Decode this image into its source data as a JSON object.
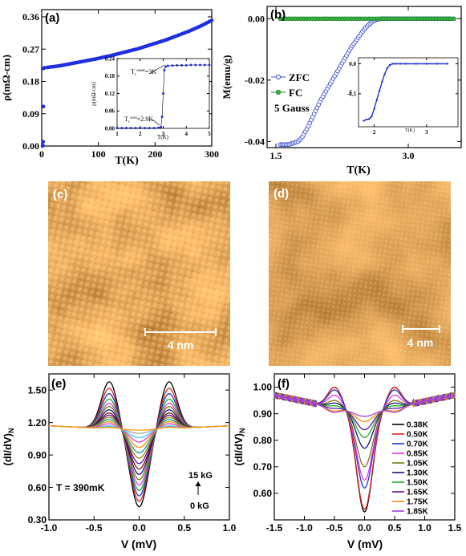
{
  "chart_data": [
    {
      "id": "a",
      "type": "scatter",
      "panel_label": "(a)",
      "xlabel": "T(K)",
      "ylabel": "ρ(mΩ-cm)",
      "xlim": [
        0,
        300
      ],
      "ylim": [
        0,
        0.38
      ],
      "xticks": [
        "0",
        "100",
        "200",
        "300"
      ],
      "yticks": [
        "0.00",
        "0.09",
        "0.18",
        "0.27",
        "0.36"
      ],
      "marker_color": "#1f2fe0",
      "series": [
        {
          "x": [
            1.5,
            2,
            2.5,
            3,
            3,
            5,
            10,
            20,
            30,
            40,
            50,
            60,
            70,
            80,
            90,
            100,
            110,
            120,
            130,
            140,
            150,
            160,
            170,
            180,
            190,
            200,
            210,
            220,
            230,
            240,
            250,
            260,
            270,
            280,
            290,
            300
          ],
          "y": [
            0.0,
            0.002,
            0.012,
            0.11,
            0.216,
            0.218,
            0.219,
            0.221,
            0.223,
            0.226,
            0.229,
            0.232,
            0.235,
            0.238,
            0.241,
            0.244,
            0.248,
            0.251,
            0.255,
            0.259,
            0.263,
            0.267,
            0.271,
            0.276,
            0.281,
            0.286,
            0.291,
            0.296,
            0.302,
            0.308,
            0.314,
            0.32,
            0.327,
            0.334,
            0.342,
            0.35
          ]
        }
      ],
      "inset": {
        "xlabel": "T(K)",
        "ylabel": "ρ(mΩ-cm)",
        "xlim": [
          1,
          5
        ],
        "ylim": [
          0,
          0.24
        ],
        "xticks": [
          "1",
          "2",
          "3",
          "4",
          "5"
        ],
        "yticks": [
          "0.00",
          "0.06",
          "0.12",
          "0.18",
          "0.24"
        ],
        "x": [
          1.0,
          1.2,
          1.4,
          1.6,
          1.8,
          2.0,
          2.2,
          2.4,
          2.6,
          2.8,
          2.9,
          2.95,
          3.0,
          3.05,
          3.1,
          3.2,
          3.4,
          3.6,
          3.8,
          4.0,
          4.2,
          4.4,
          4.6,
          4.8,
          5.0
        ],
        "y": [
          0.001,
          0.001,
          0.001,
          0.001,
          0.001,
          0.001,
          0.001,
          0.001,
          0.001,
          0.002,
          0.004,
          0.04,
          0.12,
          0.2,
          0.212,
          0.215,
          0.216,
          0.217,
          0.217,
          0.217,
          0.218,
          0.218,
          0.218,
          0.218,
          0.218
        ],
        "annotations": [
          "T",
          "c",
          "onset",
          "=3K",
          "T",
          "c",
          "zero",
          "=2.9K"
        ]
      }
    },
    {
      "id": "b",
      "type": "scatter",
      "panel_label": "(b)",
      "xlabel": "T(K)",
      "ylabel": "M(emu/g)",
      "xlim": [
        1.4,
        3.6
      ],
      "ylim": [
        -0.042,
        0.004
      ],
      "xticks": [
        "1.5",
        "3.0"
      ],
      "yticks": [
        "0.00",
        "-0.02",
        "-0.04"
      ],
      "legend": {
        "placement": "middle-left",
        "entries": [
          "ZFC",
          "FC"
        ],
        "note": "5 Gauss"
      },
      "series": [
        {
          "name": "ZFC",
          "color": "#3a4fd8",
          "x": [
            1.55,
            1.6,
            1.65,
            1.7,
            1.75,
            1.8,
            1.85,
            1.9,
            1.95,
            2.0,
            2.05,
            2.1,
            2.15,
            2.2,
            2.25,
            2.3,
            2.35,
            2.4,
            2.45,
            2.5,
            2.55,
            2.6,
            2.65,
            2.7,
            2.75,
            2.8,
            2.9,
            3.0,
            3.1,
            3.2,
            3.3,
            3.4,
            3.5
          ],
          "y": [
            -0.041,
            -0.041,
            -0.041,
            -0.0405,
            -0.04,
            -0.0385,
            -0.036,
            -0.033,
            -0.03,
            -0.027,
            -0.0245,
            -0.022,
            -0.0195,
            -0.017,
            -0.0145,
            -0.012,
            -0.0095,
            -0.0075,
            -0.0055,
            -0.0035,
            -0.002,
            -0.0008,
            -0.0002,
            0.0,
            0.0,
            0.0,
            0.0,
            0.0,
            0.0,
            0.0,
            0.0,
            0.0,
            0.0
          ]
        },
        {
          "name": "FC",
          "color": "#1e8a28",
          "x": [
            1.55,
            1.65,
            1.75,
            1.85,
            1.95,
            2.05,
            2.15,
            2.25,
            2.35,
            2.45,
            2.55,
            2.65,
            2.75,
            2.85,
            2.95,
            3.05,
            3.15,
            3.25,
            3.35,
            3.45,
            3.55
          ],
          "y": [
            0.0,
            0.0,
            0.0,
            0.0,
            0.0,
            0.0,
            0.0,
            0.0,
            0.0,
            0.0,
            0.0,
            0.0,
            0.0,
            0.0,
            0.0,
            0.0,
            0.0,
            0.0,
            0.0,
            0.0,
            0.0
          ]
        }
      ],
      "inset": {
        "xlabel": "T(K)",
        "ylabel": "χ",
        "xlim": [
          1.7,
          3.6
        ],
        "ylim": [
          -1.05,
          0.1
        ],
        "xticks": [
          "2",
          "3"
        ],
        "yticks": [
          "0.0",
          "-0.5"
        ],
        "x": [
          1.8,
          1.85,
          1.9,
          1.95,
          2.0,
          2.05,
          2.1,
          2.15,
          2.2,
          2.25,
          2.3,
          2.35,
          2.4,
          2.5,
          2.6,
          2.8,
          3.0,
          3.2,
          3.4
        ],
        "y": [
          -0.95,
          -0.93,
          -0.92,
          -0.88,
          -0.75,
          -0.6,
          -0.45,
          -0.3,
          -0.17,
          -0.07,
          -0.02,
          0.0,
          0.0,
          0.0,
          0.0,
          0.0,
          0.0,
          0.0,
          0.0
        ]
      }
    },
    {
      "id": "e",
      "type": "line",
      "panel_label": "(e)",
      "xlabel": "V (mV)",
      "ylabel": "(dI/dV)",
      "ylabel_sub": "N",
      "xlim": [
        -1.0,
        1.0
      ],
      "ylim": [
        0.3,
        1.65
      ],
      "xticks": [
        "-1.0",
        "-0.5",
        "0.0",
        "0.5",
        "1.0"
      ],
      "yticks": [
        "0.30",
        "0.60",
        "0.90",
        "1.20",
        "1.50"
      ],
      "annotations": [
        "T = 390mK",
        "15 kG",
        "0 kG"
      ],
      "series": [
        {
          "color": "#000000",
          "dip": 0.42,
          "peak": 1.58
        },
        {
          "color": "#e0201e",
          "dip": 0.47,
          "peak": 1.52
        },
        {
          "color": "#1a34d4",
          "dip": 0.52,
          "peak": 1.47
        },
        {
          "color": "#20b020",
          "dip": 0.57,
          "peak": 1.42
        },
        {
          "color": "#e830e0",
          "dip": 0.62,
          "peak": 1.38
        },
        {
          "color": "#7a7a10",
          "dip": 0.67,
          "peak": 1.35
        },
        {
          "color": "#101880",
          "dip": 0.72,
          "peak": 1.32
        },
        {
          "color": "#7a1010",
          "dip": 0.77,
          "peak": 1.29
        },
        {
          "color": "#6010a0",
          "dip": 0.82,
          "peak": 1.27
        },
        {
          "color": "#909000",
          "dip": 0.87,
          "peak": 1.25
        },
        {
          "color": "#0a9a9a",
          "dip": 0.92,
          "peak": 1.23
        },
        {
          "color": "#ff8c00",
          "dip": 0.97,
          "peak": 1.21
        },
        {
          "color": "#d040d0",
          "dip": 1.02,
          "peak": 1.19
        },
        {
          "color": "#40c0ff",
          "dip": 1.06,
          "peak": 1.17
        },
        {
          "color": "#a0a0a0",
          "dip": 1.1,
          "peak": 1.16
        },
        {
          "color": "#ff9900",
          "dip": 1.13,
          "peak": 1.155
        }
      ]
    },
    {
      "id": "f",
      "type": "line",
      "panel_label": "(f)",
      "xlabel": "V (mV)",
      "ylabel": "(dI/dV)",
      "ylabel_sub": "N",
      "xlim": [
        -1.5,
        1.5
      ],
      "ylim": [
        0.5,
        1.05
      ],
      "xticks": [
        "-1.5",
        "-1.0",
        "-0.5",
        "0.0",
        "0.5",
        "1.0",
        "1.5"
      ],
      "yticks": [
        "0.60",
        "0.70",
        "0.80",
        "0.90",
        "1.00"
      ],
      "legend": {
        "placement": "right"
      },
      "series": [
        {
          "name": "0.38K",
          "color": "#000000",
          "dip": 0.53,
          "peak": 1.0
        },
        {
          "name": "0.50K",
          "color": "#e0201e",
          "dip": 0.54,
          "peak": 1.0
        },
        {
          "name": "0.70K",
          "color": "#1a34d4",
          "dip": 0.62,
          "peak": 0.99
        },
        {
          "name": "0.85K",
          "color": "#e830e0",
          "dip": 0.65,
          "peak": 0.97
        },
        {
          "name": "1.05K",
          "color": "#7a7a10",
          "dip": 0.7,
          "peak": 0.95
        },
        {
          "name": "1.30K",
          "color": "#101880",
          "dip": 0.77,
          "peak": 0.94
        },
        {
          "name": "1.50K",
          "color": "#20b020",
          "dip": 0.81,
          "peak": 0.93
        },
        {
          "name": "1.65K",
          "color": "#6010a0",
          "dip": 0.84,
          "peak": 0.92
        },
        {
          "name": "1.75K",
          "color": "#ff8c00",
          "dip": 0.87,
          "peak": 0.91
        },
        {
          "name": "1.85K",
          "color": "#9a40e0",
          "dip": 0.89,
          "peak": 0.905
        }
      ]
    }
  ],
  "stm_images": [
    {
      "id": "c",
      "panel_label": "(c)",
      "scale_label": "4 nm"
    },
    {
      "id": "d",
      "panel_label": "(d)",
      "scale_label": "4 nm"
    }
  ]
}
